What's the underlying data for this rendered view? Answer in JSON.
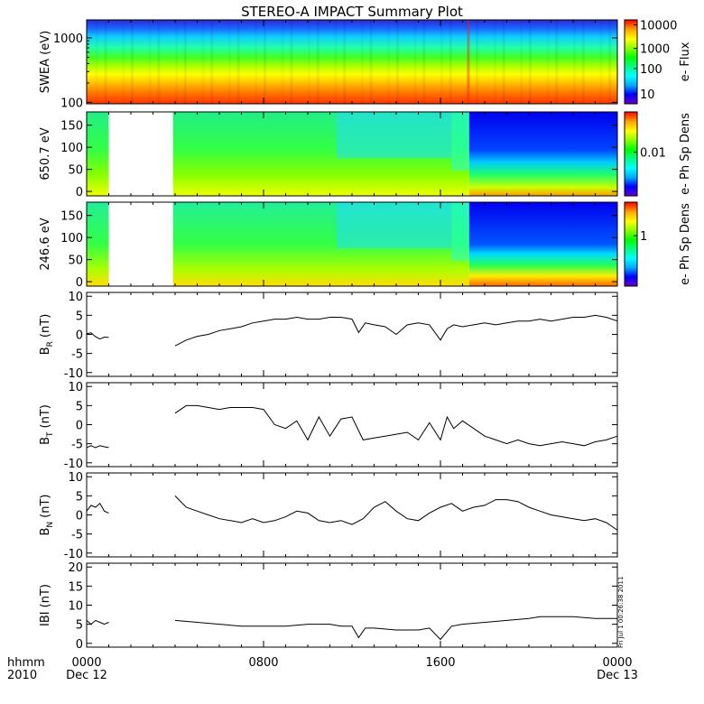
{
  "title": "STEREO-A IMPACT Summary Plot",
  "stamp": "Fri Jul 1 00:26:38 2011",
  "time_axis": {
    "row_label": "hhmm",
    "year_label": "2010",
    "ticks": [
      {
        "hour": 0,
        "label": "0000",
        "sub": "Dec 12"
      },
      {
        "hour": 8,
        "label": "0800",
        "sub": ""
      },
      {
        "hour": 16,
        "label": "1600",
        "sub": ""
      },
      {
        "hour": 24,
        "label": "0000",
        "sub": "Dec 13"
      }
    ]
  },
  "colors": {
    "spectrum": [
      "#6600cc",
      "#0000ff",
      "#00aaff",
      "#00ffff",
      "#00ff88",
      "#00ff00",
      "#88ff00",
      "#ffff00",
      "#ffaa00",
      "#ff0000"
    ]
  },
  "chart_data": [
    {
      "type": "heatmap",
      "ylabel": "SWEA (eV)",
      "ylog": true,
      "yticks": [
        {
          "v": 100,
          "label": "100"
        },
        {
          "v": 1000,
          "label": "1000"
        }
      ],
      "ylim": [
        95,
        1900
      ],
      "colorbar": {
        "label": "e- Flux",
        "ticks": [
          {
            "label": "10000",
            "f": 0.94
          },
          {
            "label": "1000",
            "f": 0.66
          },
          {
            "label": "100",
            "f": 0.42
          },
          {
            "label": "10",
            "f": 0.12
          }
        ]
      }
    },
    {
      "type": "heatmap",
      "ylabel": "650.7 eV",
      "ylim": [
        -10,
        180
      ],
      "yticks": [
        {
          "v": 0,
          "label": "0"
        },
        {
          "v": 50,
          "label": "50"
        },
        {
          "v": 100,
          "label": "100"
        },
        {
          "v": 150,
          "label": "150"
        }
      ],
      "gaps": [
        [
          1.0,
          3.9
        ]
      ],
      "colorbar": {
        "label": "e- Ph Sp Dens",
        "ticks": [
          {
            "label": "0.01",
            "f": 0.52
          }
        ]
      }
    },
    {
      "type": "heatmap",
      "ylabel": "246.6 eV",
      "ylim": [
        -10,
        180
      ],
      "yticks": [
        {
          "v": 0,
          "label": "0"
        },
        {
          "v": 50,
          "label": "50"
        },
        {
          "v": 100,
          "label": "100"
        },
        {
          "v": 150,
          "label": "150"
        }
      ],
      "gaps": [
        [
          1.0,
          3.9
        ]
      ],
      "colorbar": {
        "label": "e- Ph Sp Dens",
        "ticks": [
          {
            "label": "1",
            "f": 0.6
          }
        ]
      }
    },
    {
      "type": "line",
      "ylabel": "B",
      "ylabel_sub": "R",
      "ylabel_unit": "(nT)",
      "ylim": [
        -11,
        11
      ],
      "yticks": [
        {
          "v": -10,
          "label": "-10"
        },
        {
          "v": -5,
          "label": "-5"
        },
        {
          "v": 0,
          "label": "0"
        },
        {
          "v": 5,
          "label": "5"
        },
        {
          "v": 10,
          "label": "10"
        }
      ],
      "segments": [
        {
          "x": [
            0,
            0.2,
            0.4,
            0.6,
            0.8,
            1.0
          ],
          "y": [
            0.2,
            0.4,
            -0.6,
            -1.2,
            -0.7,
            -0.8
          ]
        },
        {
          "x": [
            4.0,
            4.5,
            5.0,
            5.5,
            6.0,
            6.5,
            7.0,
            7.5,
            8.0,
            8.5,
            9.0,
            9.5,
            10.0,
            10.5,
            11.0,
            11.5,
            12.0,
            12.3,
            12.6,
            13.0,
            13.5,
            14.0,
            14.5,
            15.0,
            15.5,
            16.0,
            16.3,
            16.6,
            17.0,
            17.5,
            18.0,
            18.5,
            19.0,
            19.5,
            20.0,
            20.5,
            21.0,
            21.5,
            22.0,
            22.5,
            23.0,
            23.5,
            24.0
          ],
          "y": [
            -3.0,
            -1.5,
            -0.5,
            0.0,
            1.0,
            1.5,
            2.0,
            3.0,
            3.5,
            4.0,
            4.0,
            4.5,
            4.0,
            4.0,
            4.5,
            4.5,
            4.0,
            0.5,
            3.0,
            2.5,
            2.0,
            0.0,
            2.5,
            3.0,
            2.5,
            -1.5,
            1.5,
            2.5,
            2.0,
            2.5,
            3.0,
            2.5,
            3.0,
            3.5,
            3.5,
            4.0,
            3.5,
            4.0,
            4.5,
            4.5,
            5.0,
            4.5,
            3.5
          ]
        }
      ]
    },
    {
      "type": "line",
      "ylabel": "B",
      "ylabel_sub": "T",
      "ylabel_unit": "(nT)",
      "ylim": [
        -11,
        11
      ],
      "yticks": [
        {
          "v": -10,
          "label": "-10"
        },
        {
          "v": -5,
          "label": "-5"
        },
        {
          "v": 0,
          "label": "0"
        },
        {
          "v": 5,
          "label": "5"
        },
        {
          "v": 10,
          "label": "10"
        }
      ],
      "segments": [
        {
          "x": [
            0,
            0.2,
            0.4,
            0.6,
            0.8,
            1.0
          ],
          "y": [
            -6.0,
            -5.5,
            -6.0,
            -5.5,
            -5.8,
            -6.0
          ]
        },
        {
          "x": [
            4.0,
            4.5,
            5.0,
            5.5,
            6.0,
            6.5,
            7.0,
            7.5,
            8.0,
            8.5,
            9.0,
            9.5,
            10.0,
            10.5,
            11.0,
            11.5,
            12.0,
            12.5,
            13.0,
            13.5,
            14.0,
            14.5,
            15.0,
            15.5,
            16.0,
            16.3,
            16.6,
            17.0,
            17.5,
            18.0,
            18.5,
            19.0,
            19.5,
            20.0,
            20.5,
            21.0,
            21.5,
            22.0,
            22.5,
            23.0,
            23.5,
            24.0
          ],
          "y": [
            3.0,
            5.0,
            5.0,
            4.5,
            4.0,
            4.5,
            4.5,
            4.5,
            4.0,
            0.0,
            -1.0,
            1.0,
            -4.0,
            2.0,
            -3.0,
            1.5,
            2.0,
            -4.0,
            -3.5,
            -3.0,
            -2.5,
            -2.0,
            -4.0,
            0.5,
            -4.0,
            2.0,
            -1.0,
            1.0,
            -1.0,
            -3.0,
            -4.0,
            -5.0,
            -4.0,
            -5.0,
            -5.5,
            -5.0,
            -4.5,
            -5.0,
            -5.5,
            -4.5,
            -4.0,
            -3.0
          ]
        }
      ]
    },
    {
      "type": "line",
      "ylabel": "B",
      "ylabel_sub": "N",
      "ylabel_unit": "(nT)",
      "ylim": [
        -11,
        11
      ],
      "yticks": [
        {
          "v": -10,
          "label": "-10"
        },
        {
          "v": -5,
          "label": "-5"
        },
        {
          "v": 0,
          "label": "0"
        },
        {
          "v": 5,
          "label": "5"
        },
        {
          "v": 10,
          "label": "10"
        }
      ],
      "segments": [
        {
          "x": [
            0,
            0.2,
            0.4,
            0.6,
            0.8,
            1.0
          ],
          "y": [
            1.0,
            2.5,
            2.0,
            3.0,
            1.0,
            0.5
          ]
        },
        {
          "x": [
            4.0,
            4.5,
            5.0,
            5.5,
            6.0,
            6.5,
            7.0,
            7.5,
            8.0,
            8.5,
            9.0,
            9.5,
            10.0,
            10.5,
            11.0,
            11.5,
            12.0,
            12.5,
            13.0,
            13.5,
            14.0,
            14.5,
            15.0,
            15.5,
            16.0,
            16.5,
            17.0,
            17.5,
            18.0,
            18.5,
            19.0,
            19.5,
            20.0,
            20.5,
            21.0,
            21.5,
            22.0,
            22.5,
            23.0,
            23.5,
            24.0
          ],
          "y": [
            5.0,
            2.0,
            1.0,
            0.0,
            -1.0,
            -1.5,
            -2.0,
            -1.0,
            -2.0,
            -1.5,
            -0.5,
            1.0,
            0.5,
            -1.5,
            -2.0,
            -1.5,
            -2.5,
            -1.0,
            2.0,
            3.5,
            1.0,
            -1.0,
            -1.5,
            0.5,
            2.0,
            3.0,
            1.0,
            2.0,
            2.5,
            4.0,
            4.0,
            3.5,
            2.0,
            1.0,
            0.0,
            -0.5,
            -1.0,
            -1.5,
            -1.0,
            -2.0,
            -4.0
          ]
        }
      ]
    },
    {
      "type": "line",
      "ylabel": "IBI",
      "ylabel_unit": "(nT)",
      "ylim": [
        -1,
        21
      ],
      "yticks": [
        {
          "v": 0,
          "label": "0"
        },
        {
          "v": 5,
          "label": "5"
        },
        {
          "v": 10,
          "label": "10"
        },
        {
          "v": 15,
          "label": "15"
        },
        {
          "v": 20,
          "label": "20"
        }
      ],
      "segments": [
        {
          "x": [
            0,
            0.2,
            0.4,
            0.6,
            0.8,
            1.0
          ],
          "y": [
            6.0,
            5.0,
            6.0,
            5.5,
            5.0,
            5.5
          ]
        },
        {
          "x": [
            4.0,
            5.0,
            6.0,
            7.0,
            8.0,
            9.0,
            10.0,
            11.0,
            11.5,
            12.0,
            12.3,
            12.6,
            13.0,
            14.0,
            15.0,
            15.5,
            16.0,
            16.5,
            17.0,
            18.0,
            19.0,
            20.0,
            20.5,
            21.0,
            22.0,
            23.0,
            24.0
          ],
          "y": [
            6.0,
            5.5,
            5.0,
            4.5,
            4.5,
            4.5,
            5.0,
            5.0,
            4.5,
            4.5,
            1.5,
            4.0,
            4.0,
            3.5,
            3.5,
            4.0,
            1.0,
            4.5,
            5.0,
            5.5,
            6.0,
            6.5,
            7.0,
            7.0,
            7.0,
            6.5,
            6.5
          ]
        }
      ]
    }
  ]
}
